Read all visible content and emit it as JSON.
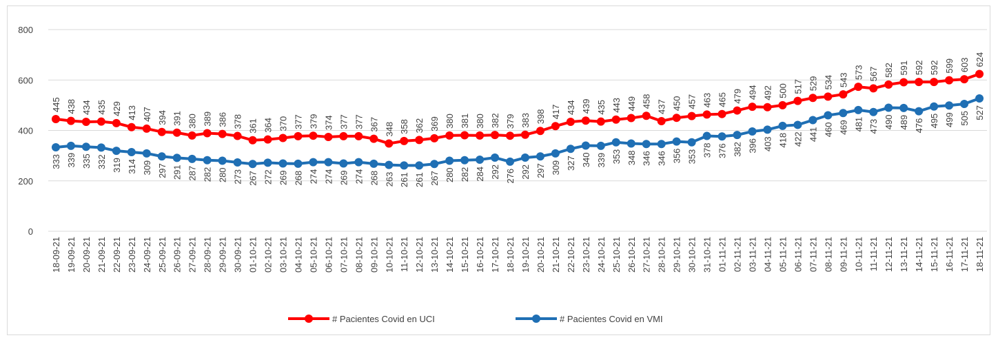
{
  "chart_data": {
    "type": "line",
    "categories": [
      "18-09-21",
      "19-09-21",
      "20-09-21",
      "21-09-21",
      "22-09-21",
      "23-09-21",
      "24-09-21",
      "25-09-21",
      "26-09-21",
      "27-09-21",
      "28-09-21",
      "29-09-21",
      "30-09-21",
      "01-10-21",
      "02-10-21",
      "03-10-21",
      "04-10-21",
      "05-10-21",
      "06-10-21",
      "07-10-21",
      "08-10-21",
      "09-10-21",
      "10-10-21",
      "11-10-21",
      "12-10-21",
      "13-10-21",
      "14-10-21",
      "15-10-21",
      "16-10-21",
      "17-10-21",
      "18-10-21",
      "19-10-21",
      "20-10-21",
      "21-10-21",
      "22-10-21",
      "23-10-21",
      "24-10-21",
      "25-10-21",
      "26-10-21",
      "27-10-21",
      "28-10-21",
      "29-10-21",
      "30-10-21",
      "31-10-21",
      "01-11-21",
      "02-11-21",
      "03-11-21",
      "04-11-21",
      "05-11-21",
      "06-11-21",
      "07-11-21",
      "08-11-21",
      "09-11-21",
      "10-11-21",
      "11-11-21",
      "12-11-21",
      "13-11-21",
      "14-11-21",
      "15-11-21",
      "16-11-21",
      "17-11-21",
      "18-11-21"
    ],
    "series": [
      {
        "name": "# Pacientes Covid en UCI",
        "color": "#ff0000",
        "values": [
          445,
          438,
          434,
          435,
          429,
          413,
          407,
          394,
          391,
          380,
          389,
          386,
          378,
          361,
          364,
          370,
          377,
          379,
          374,
          377,
          377,
          367,
          348,
          358,
          362,
          369,
          380,
          381,
          380,
          382,
          379,
          383,
          398,
          417,
          434,
          439,
          435,
          443,
          449,
          458,
          437,
          450,
          457,
          463,
          465,
          479,
          494,
          492,
          500,
          517,
          529,
          534,
          543,
          573,
          567,
          582,
          591,
          592,
          592,
          599,
          603,
          624
        ]
      },
      {
        "name": "# Pacientes Covid en VMI",
        "color": "#1f6fb4",
        "values": [
          333,
          339,
          335,
          332,
          319,
          314,
          309,
          297,
          291,
          287,
          282,
          280,
          273,
          267,
          272,
          269,
          268,
          274,
          274,
          269,
          274,
          268,
          263,
          261,
          261,
          267,
          280,
          282,
          284,
          292,
          276,
          292,
          297,
          309,
          327,
          340,
          339,
          353,
          348,
          346,
          346,
          356,
          353,
          378,
          376,
          382,
          396,
          403,
          418,
          422,
          441,
          460,
          469,
          481,
          473,
          490,
          489,
          476,
          495,
          499,
          505,
          527
        ]
      }
    ],
    "ylim": [
      0,
      800
    ],
    "yticks": [
      0,
      200,
      400,
      600,
      800
    ],
    "grid": true,
    "legend": "bottom"
  }
}
